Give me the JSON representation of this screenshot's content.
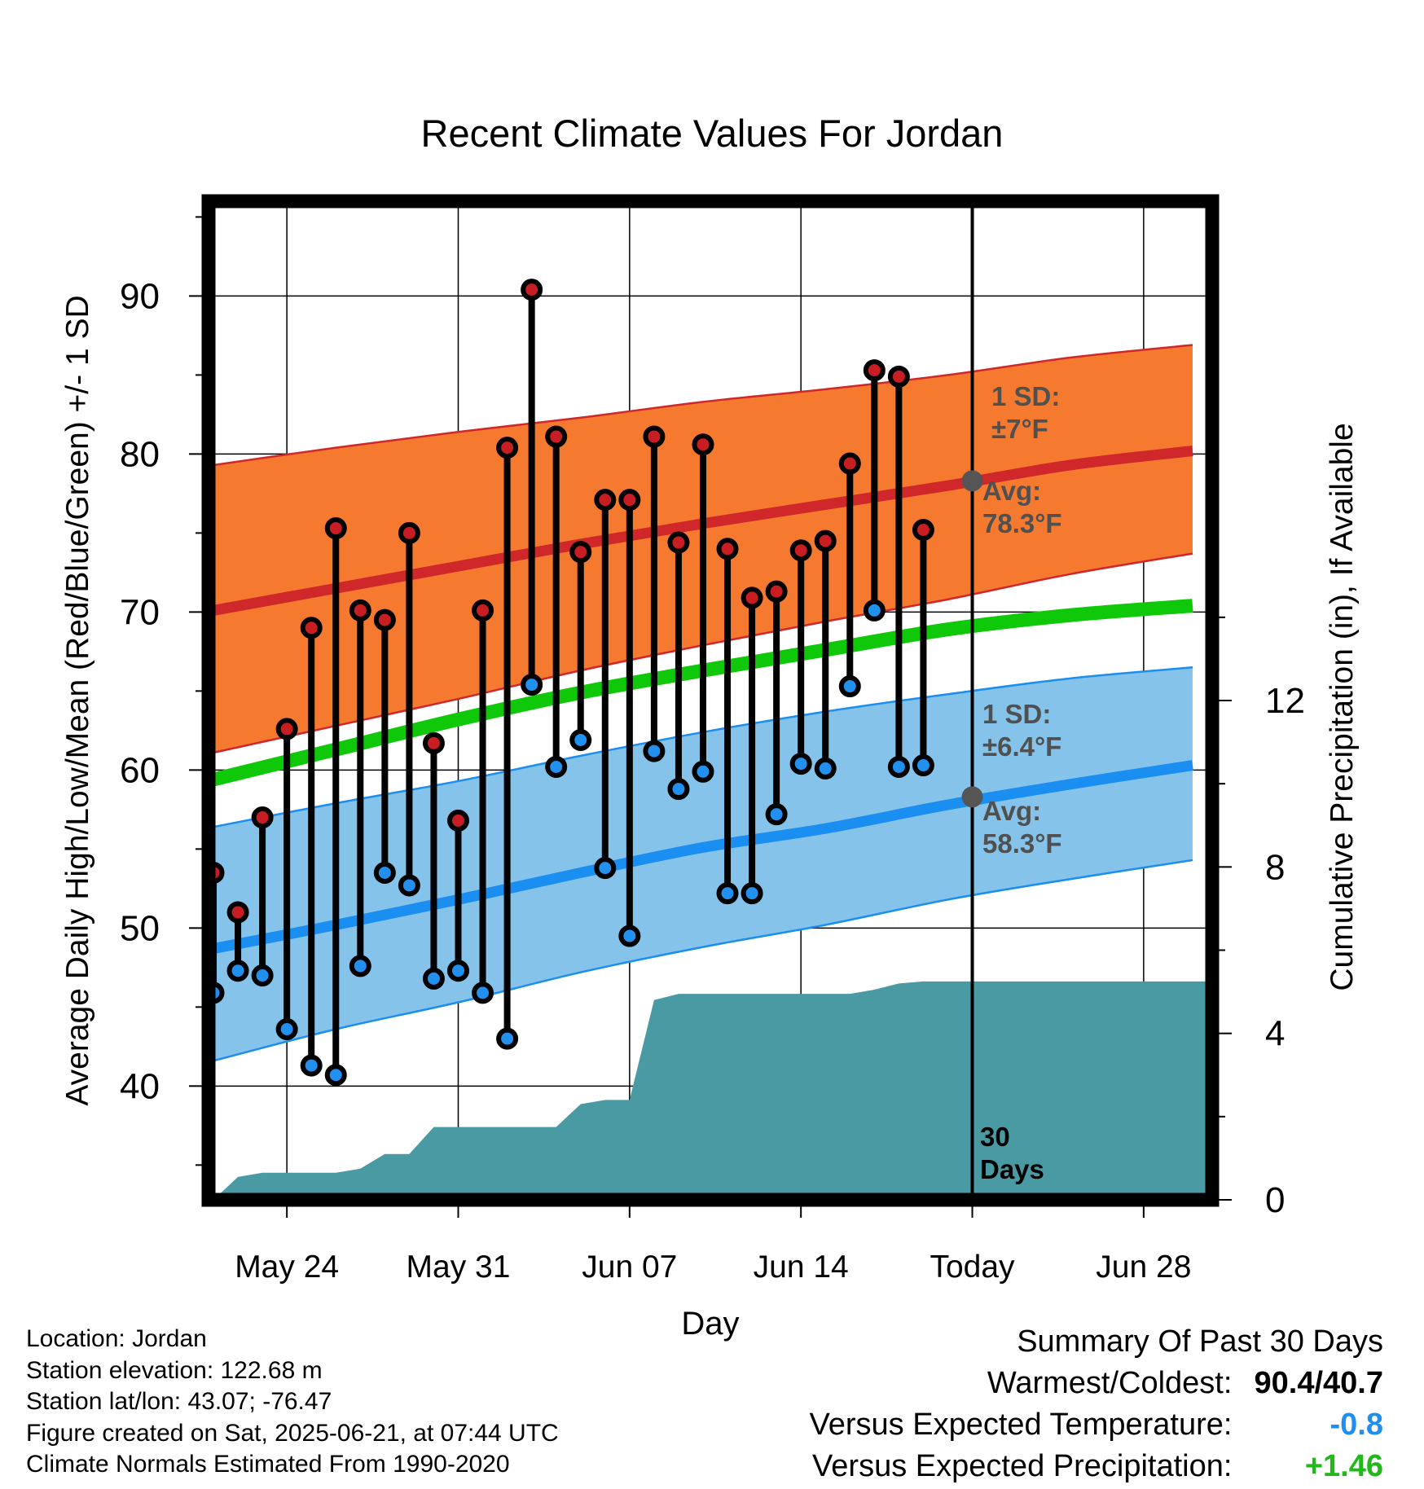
{
  "chart_data": {
    "type": "line",
    "title": "Recent Climate Values For Jordan",
    "xlabel": "Day",
    "ylabel_left": "Average Daily High/Low/Mean (Red/Blue/Green) +/- 1 SD",
    "ylabel_right": "Cumulative Precipitation (in), If Available",
    "x_ticks": [
      {
        "day": 4,
        "label": "May 24"
      },
      {
        "day": 11,
        "label": "May 31"
      },
      {
        "day": 18,
        "label": "Jun 07"
      },
      {
        "day": 25,
        "label": "Jun 14"
      },
      {
        "day": 32,
        "label": "Today"
      },
      {
        "day": 39,
        "label": "Jun 28"
      }
    ],
    "xlim": [
      0.8,
      41.8
    ],
    "ylim_left": [
      32.8,
      96
    ],
    "ylim_right": [
      0,
      24
    ],
    "y_ticks_left": [
      40,
      50,
      60,
      70,
      80,
      90
    ],
    "y_ticks_right": [
      0,
      4,
      8,
      12
    ],
    "grid": true,
    "normals": {
      "x": [
        1,
        6,
        11,
        16,
        21,
        26,
        31,
        36,
        41
      ],
      "high_avg": [
        70.1,
        71.5,
        72.9,
        74.3,
        75.6,
        76.8,
        78.0,
        79.3,
        80.2
      ],
      "high_upper": [
        79.3,
        80.4,
        81.4,
        82.3,
        83.3,
        84.1,
        85.0,
        86.1,
        86.9
      ],
      "high_lower": [
        61.1,
        62.8,
        64.5,
        66.3,
        67.9,
        69.4,
        70.8,
        72.4,
        73.7
      ],
      "mean": [
        59.4,
        61.3,
        63.2,
        64.9,
        66.3,
        67.6,
        68.9,
        69.8,
        70.4
      ],
      "low_avg": [
        48.7,
        50.2,
        51.8,
        53.5,
        55.1,
        56.3,
        57.8,
        59.1,
        60.3
      ],
      "low_upper": [
        56.4,
        57.9,
        59.3,
        60.9,
        62.4,
        63.7,
        64.8,
        65.8,
        66.5
      ],
      "low_lower": [
        41.6,
        43.6,
        45.3,
        47.2,
        48.8,
        50.2,
        51.8,
        53.1,
        54.3
      ]
    },
    "series": [
      {
        "name": "High",
        "x": [
          1,
          2,
          3,
          4,
          5,
          6,
          7,
          8,
          9,
          10,
          11,
          12,
          13,
          14,
          15,
          16,
          17,
          18,
          19,
          20,
          21,
          22,
          23,
          24,
          25,
          26,
          27,
          28,
          29,
          30,
          31
        ],
        "values": [
          53.5,
          51.0,
          57.0,
          62.6,
          69.0,
          75.3,
          70.1,
          69.5,
          75.0,
          61.7,
          56.8,
          70.1,
          80.4,
          90.4,
          81.1,
          73.8,
          77.1,
          77.1,
          81.1,
          74.4,
          80.6,
          74.0,
          70.9,
          71.3,
          73.9,
          74.5,
          79.4,
          85.3,
          84.9,
          75.2,
          null
        ]
      },
      {
        "name": "Low",
        "x": [
          1,
          2,
          3,
          4,
          5,
          6,
          7,
          8,
          9,
          10,
          11,
          12,
          13,
          14,
          15,
          16,
          17,
          18,
          19,
          20,
          21,
          22,
          23,
          24,
          25,
          26,
          27,
          28,
          29,
          30,
          31
        ],
        "values": [
          45.9,
          47.3,
          47.0,
          43.6,
          41.3,
          40.7,
          47.6,
          53.5,
          52.7,
          46.8,
          47.3,
          45.9,
          43.0,
          65.4,
          60.2,
          61.9,
          53.8,
          49.5,
          61.2,
          58.8,
          59.9,
          52.2,
          52.2,
          57.2,
          60.4,
          60.1,
          65.3,
          70.1,
          60.2,
          60.3,
          null
        ]
      },
      {
        "name": "Cumulative Precipitation",
        "x": [
          0.8,
          1,
          2,
          3,
          4,
          5,
          6,
          7,
          8,
          9,
          10,
          11,
          12,
          13,
          14,
          15,
          16,
          17,
          18,
          19,
          20,
          21,
          22,
          23,
          24,
          25,
          26,
          27,
          28,
          29,
          30,
          31,
          41.8
        ],
        "values": [
          0,
          0.0,
          0.55,
          0.65,
          0.65,
          0.65,
          0.65,
          0.75,
          1.1,
          1.1,
          1.75,
          1.75,
          1.75,
          1.75,
          1.75,
          1.75,
          2.3,
          2.4,
          2.4,
          4.8,
          4.95,
          4.95,
          4.95,
          4.95,
          4.95,
          4.95,
          4.95,
          4.95,
          5.05,
          5.2,
          5.25,
          5.25,
          5.25
        ]
      }
    ],
    "annotations": {
      "high_sd": [
        "1 SD:",
        "±7°F"
      ],
      "high_avg": [
        "Avg:",
        "78.3°F"
      ],
      "low_sd": [
        "1 SD:",
        "±6.4°F"
      ],
      "low_avg": [
        "Avg:",
        "58.3°F"
      ],
      "period": [
        "30",
        "Days"
      ]
    },
    "today_marker": {
      "day": 32,
      "high_avg": 78.3,
      "low_avg": 58.3
    }
  },
  "colors": {
    "high_band": "#f57a30",
    "high_line": "#d0282a",
    "mean_line": "#10c80a",
    "low_band": "#86c3ea",
    "low_line": "#1b8ef2",
    "precip_fill": "#4a9aa4",
    "high_marker": "#c81e23",
    "low_marker": "#2190ee",
    "annotation_text": "#505050"
  },
  "footer": {
    "location": "Location: Jordan",
    "elevation": "Station elevation: 122.68 m",
    "latlon": "Station lat/lon: 43.07; -76.47",
    "created": "Figure created on Sat, 2025-06-21, at 07:44 UTC",
    "normals": "Climate Normals Estimated From 1990-2020"
  },
  "summary": {
    "title": "Summary Of Past 30 Days",
    "warm_cold_label": "Warmest/Coldest:",
    "warm_cold_value": "90.4/40.7",
    "temp_label": "Versus Expected Temperature:",
    "temp_value": "-0.8",
    "temp_color": "#1e8ff0",
    "precip_label": "Versus Expected Precipitation:",
    "precip_value": "+1.46",
    "precip_color": "#22b81c"
  }
}
